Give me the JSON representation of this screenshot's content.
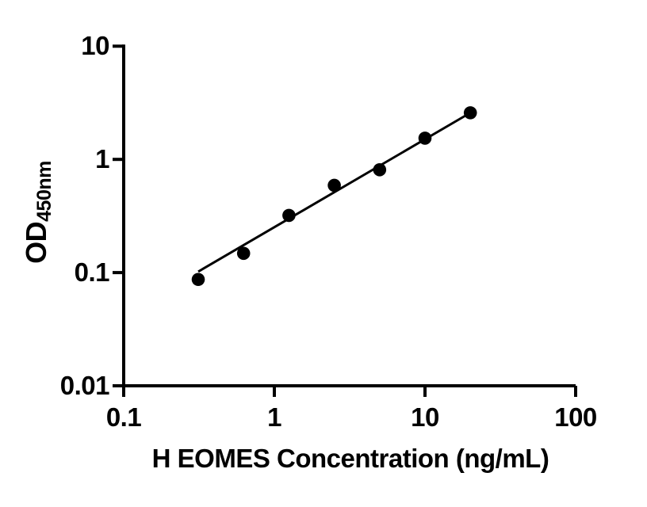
{
  "figure": {
    "background_color": "#ffffff",
    "axis_color": "#000000",
    "marker_color": "#000000",
    "line_color": "#000000"
  },
  "chart_data": {
    "type": "scatter",
    "title": "",
    "xlabel": "H EOMES Concentration (ng/mL)",
    "ylabel_main": "OD",
    "ylabel_sub": "450nm",
    "x_scale": "log",
    "y_scale": "log",
    "xlim": [
      0.1,
      100
    ],
    "ylim": [
      0.01,
      10
    ],
    "x_ticks": [
      0.1,
      1,
      10,
      100
    ],
    "x_tick_labels": [
      "0.1",
      "1",
      "10",
      "100"
    ],
    "y_ticks": [
      0.01,
      0.1,
      1,
      10
    ],
    "y_tick_labels": [
      "0.01",
      "0.1",
      "1",
      "10"
    ],
    "grid": false,
    "legend": "none",
    "series": [
      {
        "marker": "filled-circle",
        "color": "#000000",
        "x": [
          0.3125,
          0.625,
          1.25,
          2.5,
          5,
          10,
          20
        ],
        "y": [
          0.087,
          0.148,
          0.32,
          0.59,
          0.81,
          1.54,
          2.58
        ]
      }
    ],
    "fit_line": {
      "x1": 0.3125,
      "y1": 0.102,
      "x2": 20,
      "y2": 2.58,
      "color": "#000000"
    }
  }
}
